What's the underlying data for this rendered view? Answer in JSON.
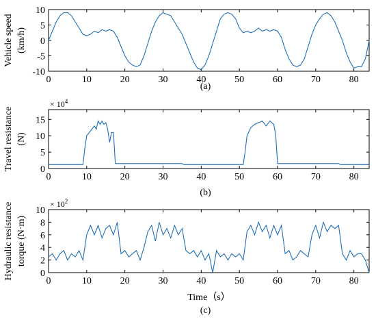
{
  "chart_data": [
    {
      "type": "line",
      "ylabel": [
        "Vehicle speed",
        "(km/h)"
      ],
      "caption": "(a)",
      "color": "#1f6fb8",
      "xlim": [
        0,
        84
      ],
      "xticks": [
        0,
        10,
        20,
        30,
        40,
        50,
        60,
        70,
        80
      ],
      "ylim": [
        -10,
        10
      ],
      "yticks": [
        -10,
        -5,
        0,
        5,
        10
      ],
      "x": [
        0,
        1,
        2,
        3,
        4,
        5,
        6,
        7,
        8,
        9,
        10,
        11,
        12,
        13,
        14,
        15,
        16,
        17,
        18,
        19,
        20,
        21,
        22,
        23,
        24,
        25,
        26,
        27,
        28,
        29,
        30,
        31,
        32,
        33,
        34,
        35,
        36,
        37,
        38,
        39,
        40,
        41,
        42,
        43,
        44,
        45,
        46,
        47,
        48,
        49,
        50,
        51,
        52,
        53,
        54,
        55,
        56,
        57,
        58,
        59,
        60,
        61,
        62,
        63,
        64,
        65,
        66,
        67,
        68,
        69,
        70,
        71,
        72,
        73,
        74,
        75,
        76,
        77,
        78,
        79,
        80,
        81,
        82,
        83,
        84
      ],
      "values": [
        0,
        3,
        6,
        8,
        9,
        9,
        8,
        6,
        4,
        2,
        1.5,
        2,
        3,
        2.5,
        3.5,
        3,
        3.5,
        3,
        1,
        -2,
        -5,
        -7,
        -8,
        -8.5,
        -8,
        -5,
        -1,
        3,
        6,
        8,
        9,
        8.5,
        8,
        6,
        4,
        2,
        -1,
        -4,
        -7,
        -9,
        -9.5,
        -8,
        -5,
        -1,
        3,
        7,
        8.5,
        9,
        8.5,
        7,
        4,
        2.5,
        3,
        2.5,
        3,
        4,
        3,
        3.5,
        3,
        3.5,
        3,
        1,
        -3,
        -6,
        -8,
        -8.5,
        -8,
        -6,
        -2,
        2,
        5,
        7,
        8.5,
        9,
        8,
        6,
        3,
        0,
        -4,
        -7,
        -9,
        -8.5,
        -8.5,
        -6,
        0
      ]
    },
    {
      "type": "line",
      "ylabel": [
        "Travel resistance",
        "(N)"
      ],
      "caption": "(b)",
      "color": "#1f6fb8",
      "y_multiplier": "× 10",
      "y_multiplier_exp": "4",
      "xlim": [
        0,
        84
      ],
      "xticks": [
        0,
        10,
        20,
        30,
        40,
        50,
        60,
        70,
        80
      ],
      "ylim": [
        0,
        18
      ],
      "yticks": [
        0,
        5,
        10,
        15
      ],
      "x": [
        0,
        9,
        9.5,
        10,
        11,
        12,
        12.5,
        13,
        13.5,
        14,
        14.5,
        15,
        15.5,
        16,
        16.5,
        17,
        17.5,
        35,
        35.5,
        51,
        51.5,
        52,
        53,
        54,
        55,
        56,
        57,
        58,
        59,
        59.5,
        60,
        76,
        76.5,
        84
      ],
      "values": [
        1.2,
        1.2,
        6,
        10,
        11.5,
        13,
        12,
        14.5,
        13.5,
        14.5,
        13.5,
        14,
        12,
        8,
        11,
        11,
        1.5,
        1.5,
        1.2,
        1.2,
        5,
        10,
        12.5,
        13.5,
        14,
        14.5,
        13,
        14.5,
        13.5,
        10.5,
        1.5,
        1.5,
        1.2,
        1.2
      ]
    },
    {
      "type": "line",
      "ylabel": [
        "Hydraulic resistance",
        "torque (N·m)"
      ],
      "caption": "(c)",
      "xlabel": "Time（s）",
      "color": "#1f6fb8",
      "y_multiplier": "× 10",
      "y_multiplier_exp": "2",
      "xlim": [
        0,
        84
      ],
      "xticks": [
        0,
        10,
        20,
        30,
        40,
        50,
        60,
        70,
        80
      ],
      "ylim": [
        0,
        10
      ],
      "yticks": [
        0,
        2,
        4,
        6,
        8,
        10
      ],
      "x": [
        0,
        1,
        2,
        3,
        4,
        5,
        6,
        7,
        8,
        9,
        10,
        11,
        12,
        13,
        14,
        15,
        16,
        17,
        18,
        19,
        20,
        21,
        22,
        23,
        24,
        25,
        26,
        27,
        28,
        29,
        30,
        31,
        32,
        33,
        34,
        35,
        36,
        37,
        38,
        39,
        40,
        41,
        42,
        43,
        44,
        45,
        46,
        47,
        48,
        49,
        50,
        51,
        52,
        53,
        54,
        55,
        56,
        57,
        58,
        59,
        60,
        61,
        62,
        63,
        64,
        65,
        66,
        67,
        68,
        69,
        70,
        71,
        72,
        73,
        74,
        75,
        76,
        77,
        78,
        79,
        80,
        81,
        82,
        83,
        84
      ],
      "values": [
        2.5,
        3,
        2,
        3,
        3.5,
        2,
        3,
        2.5,
        3.5,
        2,
        6,
        7.5,
        6,
        7.5,
        5.5,
        7,
        7.5,
        6,
        8,
        3,
        3.5,
        2.5,
        3,
        3.5,
        2,
        4,
        6.5,
        7.5,
        5,
        8,
        6,
        7,
        5.5,
        7.5,
        6,
        7,
        3.5,
        3,
        3.5,
        2.5,
        3.5,
        2,
        3,
        0,
        3.5,
        2.5,
        3,
        2,
        3,
        2.5,
        3,
        2,
        6.5,
        7.5,
        6,
        8,
        6.5,
        7.5,
        5.5,
        7.5,
        6,
        7.5,
        3,
        3.5,
        2,
        2.5,
        3.5,
        3,
        2.5,
        6,
        7.5,
        5.5,
        8,
        6.5,
        7.5,
        7,
        7.5,
        3,
        2,
        3.5,
        2.5,
        3,
        3,
        2,
        0
      ]
    }
  ]
}
